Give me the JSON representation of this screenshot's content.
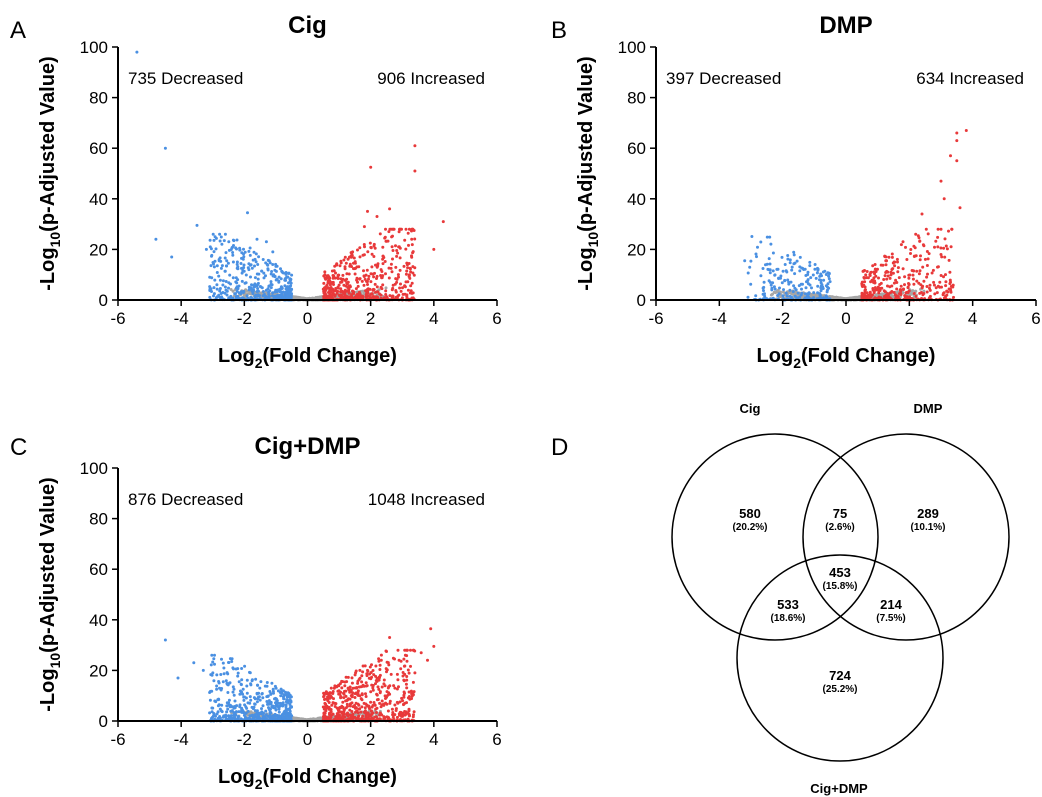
{
  "panel_letters": [
    "A",
    "B",
    "C",
    "D"
  ],
  "colors": {
    "decreased": "#4a90e2",
    "increased": "#e8393a",
    "not_significant": "#a6a6a6"
  },
  "chart_data": [
    {
      "type": "scatter",
      "panel": "A",
      "title": "Cig",
      "xlabel_main": "Log",
      "xlabel_sub": "2",
      "xlabel_rest": "(Fold Change)",
      "ylabel_main": "-Log",
      "ylabel_sub": "10",
      "ylabel_rest": "(p-Adjusted Value)",
      "xlim": [
        -6,
        6
      ],
      "ylim": [
        0,
        100
      ],
      "xticks": [
        "-6",
        "-4",
        "-2",
        "0",
        "2",
        "4",
        "6"
      ],
      "yticks": [
        "0",
        "20",
        "40",
        "60",
        "80",
        "100"
      ],
      "decreased_label": "735 Decreased",
      "increased_label": "906 Increased",
      "decreased_count": 735,
      "increased_count": 906,
      "highlight_decreased": [
        [
          -5.4,
          98
        ],
        [
          -4.5,
          60
        ],
        [
          -4.8,
          24
        ],
        [
          -3.5,
          29.5
        ],
        [
          -1.9,
          34.5
        ],
        [
          -4.3,
          17
        ],
        [
          -3.2,
          20
        ],
        [
          -2.8,
          16
        ],
        [
          -1.6,
          24
        ],
        [
          -1.3,
          23
        ],
        [
          -1.1,
          19
        ]
      ],
      "highlight_increased": [
        [
          3.4,
          61
        ],
        [
          2.0,
          52.5
        ],
        [
          3.4,
          51
        ],
        [
          4.3,
          31
        ],
        [
          2.6,
          36
        ],
        [
          1.9,
          35
        ],
        [
          2.2,
          33
        ],
        [
          1.8,
          29
        ],
        [
          2.9,
          27
        ],
        [
          3.3,
          24
        ],
        [
          4.0,
          20
        ]
      ],
      "seed": 11
    },
    {
      "type": "scatter",
      "panel": "B",
      "title": "DMP",
      "xlabel_main": "Log",
      "xlabel_sub": "2",
      "xlabel_rest": "(Fold Change)",
      "ylabel_main": "-Log",
      "ylabel_sub": "10",
      "ylabel_rest": "(p-Adjusted Value)",
      "xlim": [
        -6,
        6
      ],
      "ylim": [
        0,
        100
      ],
      "xticks": [
        "-6",
        "-4",
        "-2",
        "0",
        "2",
        "4",
        "6"
      ],
      "yticks": [
        "0",
        "20",
        "40",
        "60",
        "80",
        "100"
      ],
      "decreased_label": "397 Decreased",
      "increased_label": "634 Increased",
      "decreased_count": 397,
      "increased_count": 634,
      "highlight_decreased": [
        [
          -3.2,
          15.5
        ],
        [
          -1.7,
          13
        ],
        [
          -2.3,
          11.5
        ],
        [
          -1.2,
          11
        ],
        [
          -0.9,
          12.5
        ],
        [
          -2.6,
          5
        ]
      ],
      "highlight_increased": [
        [
          3.8,
          67
        ],
        [
          3.5,
          66
        ],
        [
          3.5,
          63
        ],
        [
          3.3,
          57
        ],
        [
          3.5,
          55
        ],
        [
          3.0,
          47
        ],
        [
          3.1,
          40
        ],
        [
          3.6,
          36.5
        ],
        [
          2.4,
          34
        ],
        [
          2.2,
          26
        ],
        [
          1.8,
          23
        ],
        [
          2.9,
          21
        ],
        [
          3.0,
          18
        ]
      ],
      "seed": 23
    },
    {
      "type": "scatter",
      "panel": "C",
      "title": "Cig+DMP",
      "xlabel_main": "Log",
      "xlabel_sub": "2",
      "xlabel_rest": "(Fold Change)",
      "ylabel_main": "-Log",
      "ylabel_sub": "10",
      "ylabel_rest": "(p-Adjusted Value)",
      "xlim": [
        -6,
        6
      ],
      "ylim": [
        0,
        100
      ],
      "xticks": [
        "-6",
        "-4",
        "-2",
        "0",
        "2",
        "4",
        "6"
      ],
      "yticks": [
        "0",
        "20",
        "40",
        "60",
        "80",
        "100"
      ],
      "decreased_label": "876 Decreased",
      "increased_label": "1048 Increased",
      "decreased_count": 876,
      "increased_count": 1048,
      "highlight_decreased": [
        [
          -4.5,
          32
        ],
        [
          -3.6,
          23
        ],
        [
          -2.4,
          23.5
        ],
        [
          -3.3,
          20
        ],
        [
          -3.0,
          19
        ],
        [
          -4.1,
          17
        ],
        [
          -2.8,
          15
        ]
      ],
      "highlight_increased": [
        [
          3.9,
          36.5
        ],
        [
          2.6,
          33
        ],
        [
          4.0,
          29.5
        ],
        [
          3.6,
          27
        ],
        [
          3.1,
          26
        ],
        [
          2.9,
          24
        ],
        [
          3.8,
          24
        ],
        [
          2.3,
          22
        ],
        [
          1.9,
          20
        ],
        [
          3.4,
          19
        ]
      ],
      "seed": 37
    }
  ],
  "venn": {
    "panel": "D",
    "type": "venn",
    "set_labels": [
      "Cig",
      "DMP",
      "Cig+DMP"
    ],
    "regions": [
      {
        "id": "cig_only",
        "count": "580",
        "percent": "(20.2%)"
      },
      {
        "id": "cig_dmp",
        "count": "75",
        "percent": "(2.6%)"
      },
      {
        "id": "dmp_only",
        "count": "289",
        "percent": "(10.1%)"
      },
      {
        "id": "all_three",
        "count": "453",
        "percent": "(15.8%)"
      },
      {
        "id": "cig_cigdmp",
        "count": "533",
        "percent": "(18.6%)"
      },
      {
        "id": "dmp_cigdmp",
        "count": "214",
        "percent": "(7.5%)"
      },
      {
        "id": "cigdmp_only",
        "count": "724",
        "percent": "(25.2%)"
      }
    ]
  }
}
